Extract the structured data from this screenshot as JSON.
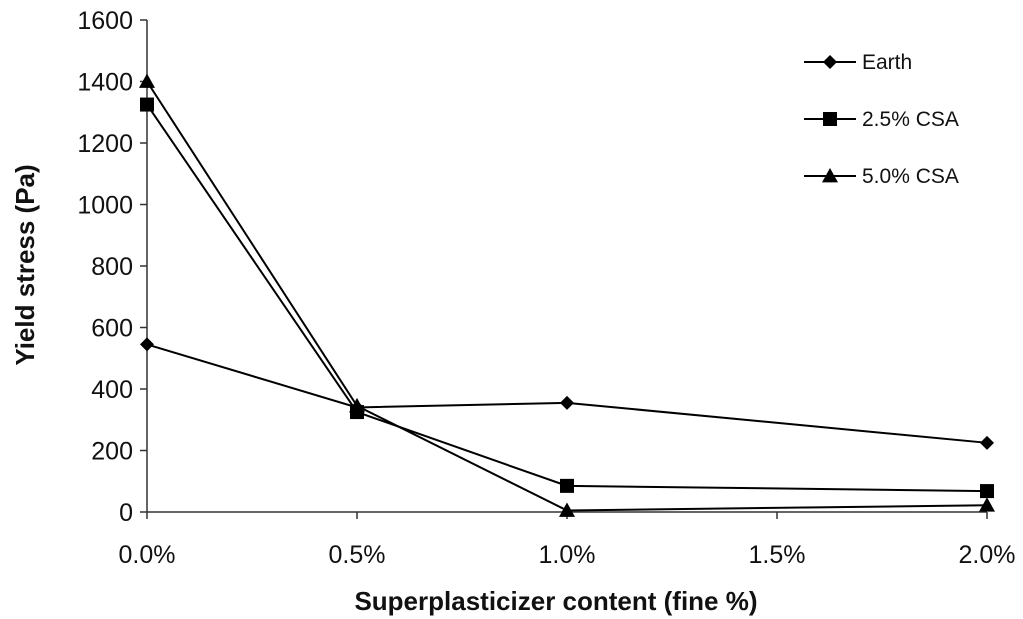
{
  "chart_data": {
    "type": "line",
    "xlabel": "Superplasticizer content (fine %)",
    "ylabel": "Yield stress (Pa)",
    "ylim": [
      0,
      1600
    ],
    "yticks": [
      "0",
      "200",
      "400",
      "600",
      "800",
      "1000",
      "1200",
      "1400",
      "1600"
    ],
    "xlim": [
      0,
      2.0
    ],
    "xticks": [
      "0.0%",
      "0.5%",
      "1.0%",
      "1.5%",
      "2.0%"
    ],
    "xtick_values": [
      0,
      0.5,
      1.0,
      1.5,
      2.0
    ],
    "x": [
      0,
      0.5,
      1.0,
      2.0
    ],
    "series": [
      {
        "name": "Earth",
        "marker": "diamond",
        "values": [
          545,
          340,
          355,
          225
        ]
      },
      {
        "name": "2.5% CSA",
        "marker": "square",
        "values": [
          1325,
          325,
          85,
          68
        ]
      },
      {
        "name": "5.0% CSA",
        "marker": "triangle",
        "values": [
          1400,
          345,
          5,
          22
        ]
      }
    ],
    "grid": false,
    "legend_position": "top-right",
    "line_color": "#000000"
  }
}
